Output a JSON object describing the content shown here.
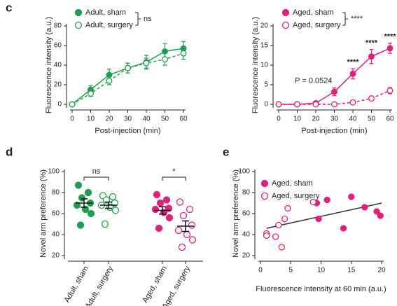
{
  "chart_data": [
    {
      "panel": "c",
      "type": "line",
      "x": [
        0,
        10,
        20,
        30,
        40,
        50,
        60
      ],
      "xlim": [
        0,
        60
      ],
      "xticks": [
        0,
        10,
        20,
        30,
        40,
        50,
        60
      ],
      "ylim": [
        0,
        80
      ],
      "yticks": [
        0,
        20,
        40,
        60,
        80
      ],
      "xlabel": "Post-injection (min)",
      "ylabel": "Fluorescence intensity (a.u.)",
      "legend_note": "ns",
      "series": [
        {
          "name": "Adult, sham",
          "color": "#1e9e4f",
          "filled": true,
          "dashed": false,
          "values": [
            0,
            15,
            30,
            37,
            43,
            54,
            57
          ],
          "errors": [
            0,
            4,
            6,
            5,
            7,
            8,
            7
          ]
        },
        {
          "name": "Adult, surgery",
          "color": "#1e9e4f",
          "filled": false,
          "dashed": true,
          "values": [
            0,
            11,
            24,
            37,
            42,
            46,
            52
          ],
          "errors": [
            0,
            3,
            4,
            5,
            5,
            6,
            6
          ]
        }
      ],
      "annotations": []
    },
    {
      "panel": "",
      "type": "line",
      "x": [
        0,
        10,
        20,
        30,
        40,
        50,
        60
      ],
      "xlim": [
        0,
        60
      ],
      "xticks": [
        0,
        10,
        20,
        30,
        40,
        50,
        60
      ],
      "ylim": [
        0,
        20
      ],
      "yticks": [
        0,
        5,
        10,
        15,
        20
      ],
      "xlabel": "Post-injection (min)",
      "ylabel": "Fluorescence intensity (a.u.)",
      "legend_note": "****",
      "series": [
        {
          "name": "Aged, sham",
          "color": "#e0207a",
          "filled": true,
          "dashed": false,
          "values": [
            0,
            0,
            0.3,
            3.2,
            7.8,
            12.2,
            14.3
          ],
          "errors": [
            0,
            0.1,
            0.4,
            1,
            1.3,
            1.8,
            1.3
          ]
        },
        {
          "name": "Aged, surgery",
          "color": "#e0207a",
          "filled": false,
          "dashed": true,
          "values": [
            0,
            0,
            0,
            0,
            0.5,
            1.5,
            3.5
          ],
          "errors": [
            0,
            0,
            0,
            0.1,
            0.3,
            0.6,
            0.8
          ]
        }
      ],
      "annotations": [
        {
          "text": "P = 0.0524",
          "x": 30
        },
        {
          "text": "****",
          "x": 40
        },
        {
          "text": "****",
          "x": 50
        },
        {
          "text": "****",
          "x": 60
        }
      ]
    },
    {
      "panel": "d",
      "type": "strip",
      "categories": [
        "Adult, sham",
        "Adult, surgery",
        "Aged, sham",
        "Aged, surgery"
      ],
      "colors": [
        "#1e9e4f",
        "#1e9e4f",
        "#e0207a",
        "#e0207a"
      ],
      "filled": [
        true,
        false,
        true,
        false
      ],
      "points": [
        [
          87,
          80,
          75,
          70,
          68,
          64,
          60,
          49
        ],
        [
          77,
          76,
          73,
          70,
          68,
          66,
          63,
          50
        ],
        [
          78,
          73,
          70,
          65,
          64,
          61,
          56,
          46
        ],
        [
          71,
          64,
          58,
          49,
          44,
          40,
          35,
          28
        ]
      ],
      "means": [
        70,
        68,
        63,
        48
      ],
      "sems": [
        4,
        3,
        3.5,
        5
      ],
      "ylim": [
        20,
        100
      ],
      "yticks": [
        20,
        40,
        60,
        80,
        100
      ],
      "ylabel": "Novel arm preference (%)",
      "comparisons": [
        {
          "from": 0,
          "to": 1,
          "text": "ns"
        },
        {
          "from": 2,
          "to": 3,
          "text": "*"
        }
      ]
    },
    {
      "panel": "e",
      "type": "scatter",
      "xlim": [
        0,
        20
      ],
      "xticks": [
        0,
        5,
        10,
        15,
        20
      ],
      "ylim": [
        20,
        100
      ],
      "yticks": [
        20,
        40,
        60,
        80,
        100
      ],
      "xlabel": "Fluorescence intensity at 60 min (a.u.)",
      "ylabel": "Novel arm preference (%)",
      "series": [
        {
          "name": "Aged, sham",
          "color": "#e0207a",
          "filled": true,
          "x": [
            9.3,
            9.6,
            11,
            13.7,
            15,
            17.2,
            19.2,
            19.8
          ],
          "y": [
            70,
            55,
            73,
            46,
            76,
            66,
            62,
            58
          ]
        },
        {
          "name": "Aged, surgery",
          "color": "#e0207a",
          "filled": false,
          "x": [
            1,
            1,
            2.5,
            3,
            3.5,
            4,
            4.5,
            8.7
          ],
          "y": [
            41,
            39,
            38,
            49,
            28,
            55,
            65,
            71
          ]
        }
      ],
      "fit": {
        "x": [
          1,
          20
        ],
        "y": [
          46,
          70
        ]
      }
    }
  ]
}
